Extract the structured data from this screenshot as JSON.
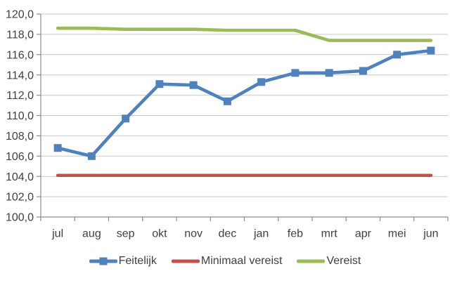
{
  "chart_data": {
    "type": "line",
    "categories": [
      "jul",
      "aug",
      "sep",
      "okt",
      "nov",
      "dec",
      "jan",
      "feb",
      "mrt",
      "apr",
      "mei",
      "jun"
    ],
    "series": [
      {
        "name": "Feitelijk",
        "color": "#4f81bd",
        "marker": "square",
        "values": [
          106.8,
          106.0,
          109.7,
          113.1,
          113.0,
          111.4,
          113.3,
          114.2,
          114.2,
          114.4,
          116.0,
          116.4
        ]
      },
      {
        "name": "Minimaal vereist",
        "color": "#c0504d",
        "marker": "none",
        "values": [
          104.1,
          104.1,
          104.1,
          104.1,
          104.1,
          104.1,
          104.1,
          104.1,
          104.1,
          104.1,
          104.1,
          104.1
        ]
      },
      {
        "name": "Vereist",
        "color": "#9bbb59",
        "marker": "none",
        "values": [
          118.6,
          118.6,
          118.5,
          118.5,
          118.5,
          118.4,
          118.4,
          118.4,
          117.4,
          117.4,
          117.4,
          117.4
        ]
      }
    ],
    "title": "",
    "xlabel": "",
    "ylabel": "",
    "ylim": [
      100.0,
      120.0
    ],
    "ytick_step": 2.0,
    "ytick_labels": [
      "100,0",
      "102,0",
      "104,0",
      "106,0",
      "108,0",
      "110,0",
      "112,0",
      "114,0",
      "116,0",
      "118,0",
      "120,0"
    ],
    "grid": true,
    "legend_position": "bottom"
  },
  "colors": {
    "background": "#ffffff",
    "gridline": "#c9c9c9",
    "axis": "#8c8c8c",
    "text": "#404040"
  }
}
